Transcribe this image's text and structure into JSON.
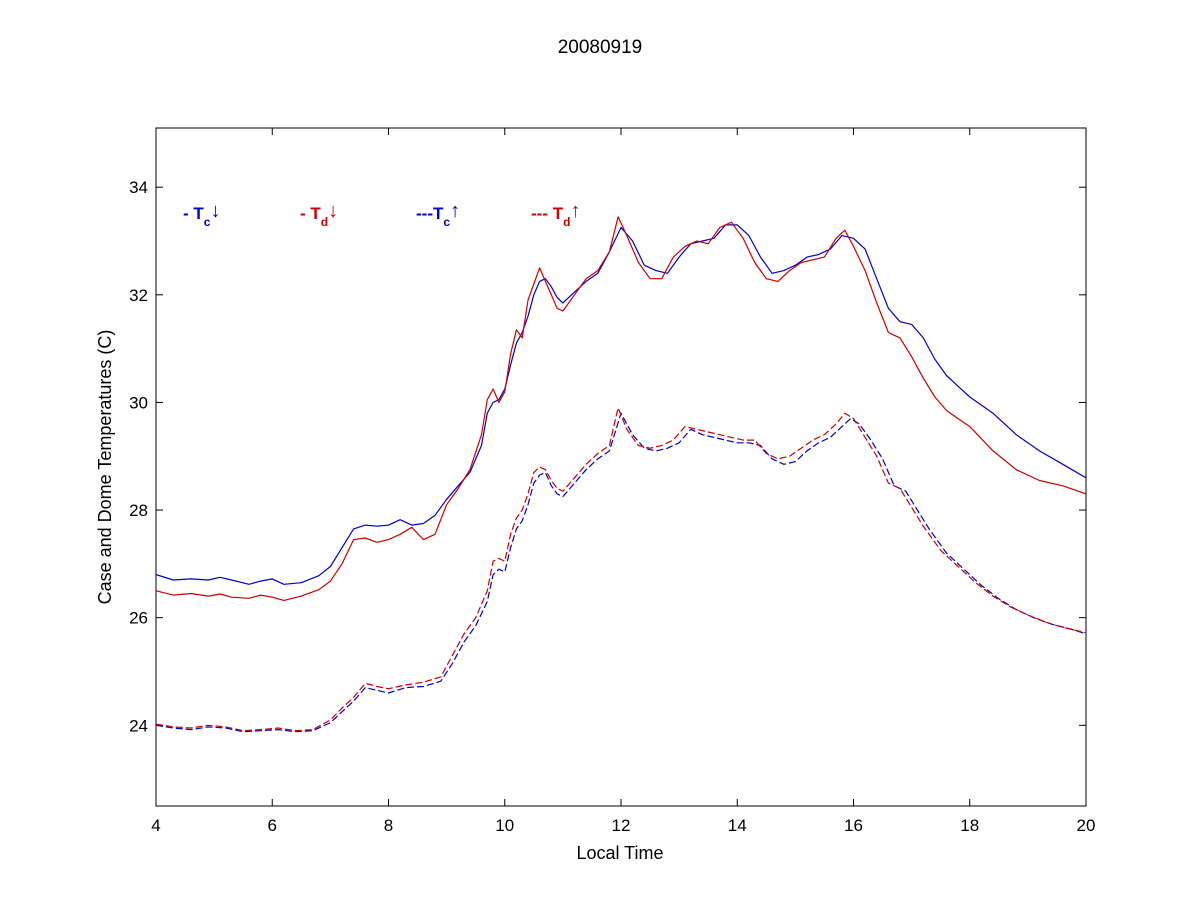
{
  "chart_data": {
    "type": "line",
    "title": "20080919",
    "xlabel": "Local Time",
    "ylabel": "Case and Dome Temperatures (C)",
    "xlim": [
      4,
      20
    ],
    "ylim": [
      22.5,
      35.1
    ],
    "xticks": [
      4,
      6,
      8,
      10,
      12,
      14,
      16,
      18,
      20
    ],
    "yticks": [
      24,
      26,
      28,
      30,
      32,
      34
    ],
    "grid": false,
    "legend_placement": "top-left, inside axes, horizontal",
    "series": [
      {
        "legend_prefix": "- T",
        "legend_subscript": "c",
        "legend_arrow": "↓",
        "color": "#0000cc",
        "style": "solid",
        "x": [
          4.0,
          4.3,
          4.6,
          4.9,
          5.1,
          5.3,
          5.6,
          5.8,
          6.0,
          6.2,
          6.5,
          6.8,
          7.0,
          7.2,
          7.4,
          7.6,
          7.8,
          8.0,
          8.2,
          8.4,
          8.6,
          8.8,
          9.0,
          9.2,
          9.4,
          9.6,
          9.7,
          9.8,
          9.9,
          10.0,
          10.1,
          10.2,
          10.3,
          10.4,
          10.5,
          10.6,
          10.7,
          10.8,
          10.9,
          11.0,
          11.2,
          11.4,
          11.6,
          11.8,
          12.0,
          12.2,
          12.4,
          12.6,
          12.8,
          13.0,
          13.2,
          13.4,
          13.6,
          13.8,
          14.0,
          14.2,
          14.4,
          14.6,
          14.8,
          15.0,
          15.2,
          15.4,
          15.6,
          15.8,
          16.0,
          16.2,
          16.4,
          16.6,
          16.8,
          17.0,
          17.2,
          17.4,
          17.6,
          17.8,
          18.0,
          18.4,
          18.8,
          19.2,
          19.6,
          20.0
        ],
        "values": [
          26.8,
          26.7,
          26.72,
          26.7,
          26.75,
          26.7,
          26.62,
          26.68,
          26.72,
          26.62,
          26.65,
          26.78,
          26.95,
          27.3,
          27.65,
          27.72,
          27.7,
          27.72,
          27.82,
          27.72,
          27.75,
          27.9,
          28.2,
          28.45,
          28.7,
          29.2,
          29.8,
          30.0,
          30.05,
          30.25,
          30.7,
          31.1,
          31.3,
          31.6,
          32.0,
          32.25,
          32.3,
          32.15,
          31.95,
          31.85,
          32.05,
          32.25,
          32.4,
          32.8,
          33.25,
          33.0,
          32.55,
          32.45,
          32.4,
          32.7,
          32.95,
          33.0,
          33.05,
          33.3,
          33.3,
          33.1,
          32.7,
          32.4,
          32.45,
          32.55,
          32.7,
          32.75,
          32.85,
          33.1,
          33.05,
          32.85,
          32.3,
          31.75,
          31.5,
          31.45,
          31.2,
          30.8,
          30.5,
          30.3,
          30.1,
          29.8,
          29.4,
          29.1,
          28.85,
          28.6
        ]
      },
      {
        "legend_prefix": "- T",
        "legend_subscript": "d",
        "legend_arrow": "↓",
        "color": "#cc0000",
        "style": "solid",
        "x": [
          4.0,
          4.3,
          4.6,
          4.9,
          5.1,
          5.3,
          5.6,
          5.8,
          6.0,
          6.2,
          6.5,
          6.8,
          7.0,
          7.2,
          7.4,
          7.6,
          7.8,
          8.0,
          8.2,
          8.4,
          8.6,
          8.8,
          9.0,
          9.2,
          9.4,
          9.6,
          9.7,
          9.8,
          9.9,
          10.0,
          10.1,
          10.2,
          10.3,
          10.4,
          10.5,
          10.6,
          10.7,
          10.8,
          10.9,
          11.0,
          11.2,
          11.4,
          11.6,
          11.8,
          11.95,
          12.1,
          12.3,
          12.5,
          12.7,
          12.9,
          13.1,
          13.3,
          13.5,
          13.7,
          13.9,
          14.1,
          14.3,
          14.5,
          14.7,
          14.9,
          15.1,
          15.3,
          15.5,
          15.7,
          15.85,
          16.0,
          16.2,
          16.4,
          16.6,
          16.8,
          17.0,
          17.2,
          17.4,
          17.6,
          17.8,
          18.0,
          18.4,
          18.8,
          19.2,
          19.6,
          20.0
        ],
        "values": [
          26.5,
          26.42,
          26.45,
          26.4,
          26.44,
          26.38,
          26.36,
          26.42,
          26.38,
          26.32,
          26.4,
          26.52,
          26.68,
          27.0,
          27.45,
          27.48,
          27.4,
          27.45,
          27.55,
          27.68,
          27.45,
          27.55,
          28.1,
          28.4,
          28.75,
          29.4,
          30.05,
          30.25,
          30.0,
          30.2,
          30.9,
          31.35,
          31.2,
          31.9,
          32.2,
          32.5,
          32.25,
          32.0,
          31.75,
          31.7,
          32.0,
          32.3,
          32.45,
          32.8,
          33.45,
          33.1,
          32.6,
          32.3,
          32.3,
          32.7,
          32.9,
          33.0,
          32.95,
          33.25,
          33.35,
          33.05,
          32.6,
          32.3,
          32.25,
          32.45,
          32.6,
          32.65,
          32.7,
          33.05,
          33.2,
          32.9,
          32.45,
          31.85,
          31.3,
          31.2,
          30.85,
          30.45,
          30.1,
          29.85,
          29.7,
          29.55,
          29.1,
          28.75,
          28.55,
          28.45,
          28.3
        ]
      },
      {
        "legend_prefix": "---T",
        "legend_subscript": "c",
        "legend_arrow": "↑",
        "color": "#0000cc",
        "style": "dashed",
        "x": [
          4.0,
          4.3,
          4.6,
          4.9,
          5.2,
          5.5,
          5.8,
          6.1,
          6.4,
          6.7,
          7.0,
          7.2,
          7.4,
          7.6,
          7.8,
          8.0,
          8.3,
          8.6,
          8.9,
          9.1,
          9.3,
          9.5,
          9.7,
          9.8,
          9.9,
          10.0,
          10.1,
          10.2,
          10.3,
          10.4,
          10.5,
          10.6,
          10.7,
          10.8,
          10.9,
          11.0,
          11.2,
          11.4,
          11.6,
          11.8,
          12.0,
          12.2,
          12.4,
          12.6,
          12.8,
          13.0,
          13.2,
          13.4,
          13.6,
          13.8,
          14.0,
          14.2,
          14.4,
          14.6,
          14.8,
          15.0,
          15.2,
          15.4,
          15.6,
          15.8,
          15.95,
          16.1,
          16.3,
          16.5,
          16.7,
          16.9,
          17.1,
          17.3,
          17.6,
          17.9,
          18.2,
          18.5,
          18.8,
          19.1,
          19.4,
          19.7,
          20.0
        ],
        "values": [
          24.0,
          23.95,
          23.92,
          23.97,
          23.95,
          23.88,
          23.9,
          23.92,
          23.88,
          23.9,
          24.05,
          24.25,
          24.45,
          24.7,
          24.65,
          24.6,
          24.7,
          24.72,
          24.82,
          25.15,
          25.55,
          25.85,
          26.3,
          26.8,
          26.9,
          26.85,
          27.3,
          27.65,
          27.8,
          28.1,
          28.5,
          28.65,
          28.7,
          28.45,
          28.3,
          28.25,
          28.5,
          28.75,
          28.95,
          29.1,
          29.8,
          29.4,
          29.15,
          29.1,
          29.15,
          29.25,
          29.5,
          29.4,
          29.35,
          29.3,
          29.25,
          29.25,
          29.2,
          28.95,
          28.85,
          28.9,
          29.1,
          29.25,
          29.35,
          29.55,
          29.7,
          29.6,
          29.3,
          28.95,
          28.45,
          28.35,
          28.0,
          27.65,
          27.2,
          26.9,
          26.6,
          26.35,
          26.15,
          26.0,
          25.88,
          25.8,
          25.7
        ]
      },
      {
        "legend_prefix": "--- T",
        "legend_subscript": "d",
        "legend_arrow": "↑",
        "color": "#cc0000",
        "style": "dashed",
        "x": [
          4.0,
          4.3,
          4.6,
          4.9,
          5.2,
          5.5,
          5.8,
          6.1,
          6.4,
          6.7,
          7.0,
          7.2,
          7.4,
          7.6,
          7.8,
          8.0,
          8.3,
          8.6,
          8.9,
          9.1,
          9.3,
          9.5,
          9.7,
          9.8,
          9.9,
          10.0,
          10.1,
          10.2,
          10.3,
          10.4,
          10.5,
          10.6,
          10.7,
          10.8,
          10.9,
          11.0,
          11.2,
          11.4,
          11.6,
          11.8,
          11.95,
          12.1,
          12.3,
          12.5,
          12.7,
          12.9,
          13.1,
          13.3,
          13.5,
          13.7,
          13.9,
          14.1,
          14.3,
          14.5,
          14.7,
          14.9,
          15.1,
          15.3,
          15.5,
          15.7,
          15.85,
          16.0,
          16.2,
          16.4,
          16.6,
          16.8,
          17.0,
          17.2,
          17.5,
          17.8,
          18.1,
          18.4,
          18.7,
          19.0,
          19.3,
          19.6,
          20.0
        ],
        "values": [
          24.02,
          23.97,
          23.95,
          24.0,
          23.97,
          23.9,
          23.92,
          23.95,
          23.9,
          23.92,
          24.1,
          24.32,
          24.52,
          24.78,
          24.72,
          24.68,
          24.75,
          24.8,
          24.9,
          25.3,
          25.7,
          26.0,
          26.5,
          27.05,
          27.1,
          27.05,
          27.55,
          27.85,
          28.0,
          28.3,
          28.7,
          28.8,
          28.75,
          28.55,
          28.4,
          28.35,
          28.6,
          28.85,
          29.05,
          29.2,
          29.9,
          29.5,
          29.2,
          29.15,
          29.2,
          29.3,
          29.55,
          29.5,
          29.45,
          29.4,
          29.35,
          29.3,
          29.3,
          29.05,
          28.95,
          29.0,
          29.15,
          29.3,
          29.4,
          29.6,
          29.8,
          29.7,
          29.35,
          29.0,
          28.5,
          28.4,
          28.05,
          27.7,
          27.25,
          26.95,
          26.65,
          26.4,
          26.2,
          26.05,
          25.92,
          25.82,
          25.72
        ]
      }
    ]
  }
}
